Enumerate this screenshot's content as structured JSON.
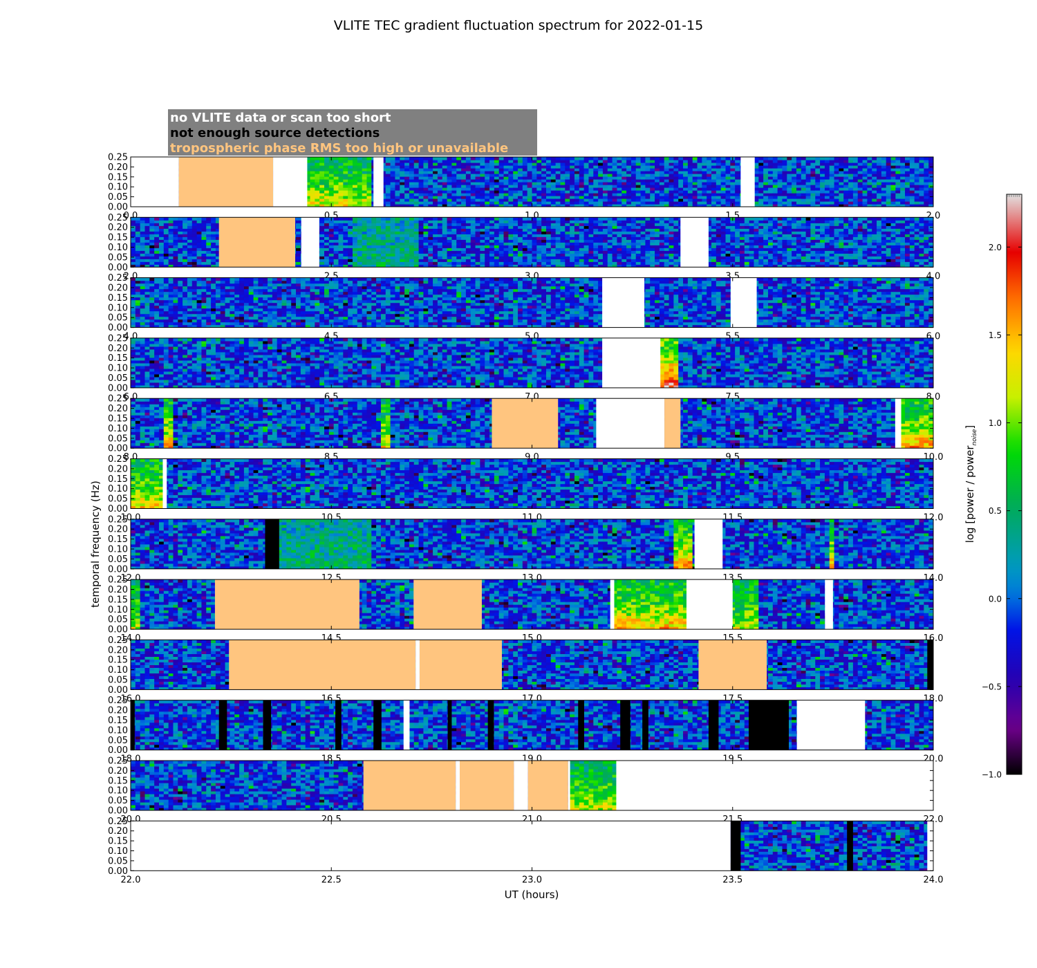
{
  "chart_data": {
    "type": "heatmap",
    "title": "VLITE TEC gradient fluctuation spectrum for 2022-01-15",
    "xlabel": "UT (hours)",
    "ylabel": "temporal frequency (Hz)",
    "ylim": [
      0,
      0.25
    ],
    "yticks": [
      "0.00",
      "0.05",
      "0.10",
      "0.15",
      "0.20",
      "0.25"
    ],
    "colorbar": {
      "label": "log [power / power_noise]",
      "label_main": "log [power / power",
      "label_sub": "noise",
      "label_end": "]",
      "range": [
        -1.0,
        2.3
      ],
      "ticks": [
        "−1.0",
        "−0.5",
        "0.0",
        "0.5",
        "1.0",
        "1.5",
        "2.0"
      ],
      "tick_values": [
        -1.0,
        -0.5,
        0.0,
        0.5,
        1.0,
        1.5,
        2.0
      ]
    },
    "legend": {
      "placement": "top-left",
      "entries": [
        {
          "label": "no VLITE data or scan too short",
          "color": "#ffffff"
        },
        {
          "label": "not enough source detections",
          "color": "#000000"
        },
        {
          "label": "tropospheric phase RMS too high or unavailable",
          "color": "#ffc57f"
        }
      ]
    },
    "colors": {
      "no_data": "#ffffff",
      "few_detections": "#000000",
      "troposphere": "#ffc57f",
      "legend_box": "#808080"
    },
    "panels": [
      {
        "range": [
          0,
          2
        ],
        "ticks": [
          "0.0",
          "0.5",
          "1.0",
          "1.5",
          "2.0"
        ],
        "flags": [
          [
            0.0,
            0.12,
            "no_data"
          ],
          [
            0.12,
            0.355,
            "troposphere"
          ],
          [
            0.355,
            0.44,
            "no_data"
          ],
          [
            0.605,
            0.63,
            "no_data"
          ],
          [
            1.52,
            1.555,
            "no_data"
          ]
        ],
        "active": [
          [
            0.44,
            0.605,
            1.1
          ]
        ]
      },
      {
        "range": [
          2,
          4
        ],
        "ticks": [
          "2.0",
          "2.5",
          "3.0",
          "3.5",
          "4.0"
        ],
        "flags": [
          [
            2.22,
            2.41,
            "troposphere"
          ],
          [
            2.425,
            2.47,
            "no_data"
          ],
          [
            3.37,
            3.44,
            "no_data"
          ]
        ],
        "active": [
          [
            2.55,
            2.72,
            0.25
          ]
        ]
      },
      {
        "range": [
          4,
          6
        ],
        "ticks": [
          "4.0",
          "4.5",
          "5.0",
          "5.5",
          "6.0"
        ],
        "flags": [
          [
            5.175,
            5.28,
            "no_data"
          ],
          [
            5.495,
            5.56,
            "no_data"
          ]
        ],
        "active": []
      },
      {
        "range": [
          6,
          8
        ],
        "ticks": [
          "6.0",
          "6.5",
          "7.0",
          "7.5",
          "8.0"
        ],
        "flags": [
          [
            7.175,
            7.32,
            "no_data"
          ]
        ],
        "active": [
          [
            7.32,
            7.36,
            1.9
          ]
        ]
      },
      {
        "range": [
          8,
          10
        ],
        "ticks": [
          "8.0",
          "8.5",
          "9.0",
          "9.5",
          "10.0"
        ],
        "flags": [
          [
            8.9,
            9.065,
            "troposphere"
          ],
          [
            9.16,
            9.33,
            "no_data"
          ],
          [
            9.33,
            9.37,
            "troposphere"
          ],
          [
            9.905,
            9.92,
            "no_data"
          ]
        ],
        "active": [
          [
            8.085,
            8.11,
            1.3
          ],
          [
            8.625,
            8.645,
            1.1
          ],
          [
            9.92,
            10.0,
            1.4
          ]
        ]
      },
      {
        "range": [
          10,
          12
        ],
        "ticks": [
          "10.0",
          "10.5",
          "11.0",
          "11.5",
          "12.0"
        ],
        "flags": [
          [
            10.08,
            10.09,
            "no_data"
          ]
        ],
        "active": [
          [
            10.0,
            10.08,
            1.2
          ]
        ]
      },
      {
        "range": [
          12,
          14
        ],
        "ticks": [
          "12.0",
          "12.5",
          "13.0",
          "13.5",
          "14.0"
        ],
        "flags": [
          [
            12.335,
            12.37,
            "few_detections"
          ],
          [
            13.405,
            13.475,
            "no_data"
          ]
        ],
        "active": [
          [
            12.37,
            12.6,
            0.3
          ],
          [
            13.35,
            13.405,
            1.5
          ],
          [
            13.74,
            13.755,
            1.3
          ]
        ]
      },
      {
        "range": [
          14,
          16
        ],
        "ticks": [
          "14.0",
          "14.5",
          "15.0",
          "15.5",
          "16.0"
        ],
        "flags": [
          [
            14.21,
            14.57,
            "troposphere"
          ],
          [
            14.705,
            14.875,
            "troposphere"
          ],
          [
            15.195,
            15.205,
            "no_data"
          ],
          [
            15.385,
            15.5,
            "no_data"
          ],
          [
            15.73,
            15.75,
            "no_data"
          ]
        ],
        "active": [
          [
            14.0,
            14.02,
            1.0
          ],
          [
            15.205,
            15.385,
            1.3
          ],
          [
            15.5,
            15.56,
            1.0
          ]
        ]
      },
      {
        "range": [
          16,
          18
        ],
        "ticks": [
          "16.0",
          "16.5",
          "17.0",
          "17.5",
          "18.0"
        ],
        "flags": [
          [
            16.245,
            16.71,
            "troposphere"
          ],
          [
            16.71,
            16.72,
            "no_data"
          ],
          [
            16.72,
            16.925,
            "troposphere"
          ],
          [
            17.415,
            17.585,
            "troposphere"
          ],
          [
            17.985,
            18.0,
            "few_detections"
          ]
        ],
        "active": []
      },
      {
        "range": [
          18,
          20
        ],
        "ticks": [
          "18.0",
          "18.5",
          "19.0",
          "19.5",
          "20.0"
        ],
        "flags": [
          [
            18.0,
            18.01,
            "few_detections"
          ],
          [
            18.22,
            18.24,
            "few_detections"
          ],
          [
            18.33,
            18.35,
            "few_detections"
          ],
          [
            18.51,
            18.525,
            "few_detections"
          ],
          [
            18.605,
            18.625,
            "few_detections"
          ],
          [
            18.68,
            18.695,
            "no_data"
          ],
          [
            18.79,
            18.8,
            "few_detections"
          ],
          [
            18.89,
            18.905,
            "few_detections"
          ],
          [
            19.115,
            19.13,
            "few_detections"
          ],
          [
            19.22,
            19.245,
            "few_detections"
          ],
          [
            19.275,
            19.29,
            "few_detections"
          ],
          [
            19.44,
            19.465,
            "few_detections"
          ],
          [
            19.54,
            19.64,
            "few_detections"
          ],
          [
            19.66,
            19.83,
            "no_data"
          ]
        ],
        "active": []
      },
      {
        "range": [
          20,
          22
        ],
        "ticks": [
          "20.0",
          "20.5",
          "21.0",
          "21.5",
          "22.0"
        ],
        "flags": [
          [
            20.58,
            20.81,
            "troposphere"
          ],
          [
            20.81,
            20.82,
            "no_data"
          ],
          [
            20.82,
            20.955,
            "troposphere"
          ],
          [
            20.955,
            20.99,
            "no_data"
          ],
          [
            20.99,
            21.09,
            "troposphere"
          ],
          [
            21.09,
            21.095,
            "no_data"
          ],
          [
            21.21,
            22.0,
            "no_data"
          ]
        ],
        "active": [
          [
            21.095,
            21.21,
            1.0
          ]
        ]
      },
      {
        "range": [
          22,
          24
        ],
        "ticks": [
          "22.0",
          "22.5",
          "23.0",
          "23.5",
          "24.0"
        ],
        "flags": [
          [
            22.0,
            23.495,
            "no_data"
          ],
          [
            23.495,
            23.52,
            "few_detections"
          ],
          [
            23.785,
            23.8,
            "few_detections"
          ],
          [
            23.985,
            24.0,
            "no_data"
          ]
        ],
        "active": []
      }
    ]
  }
}
